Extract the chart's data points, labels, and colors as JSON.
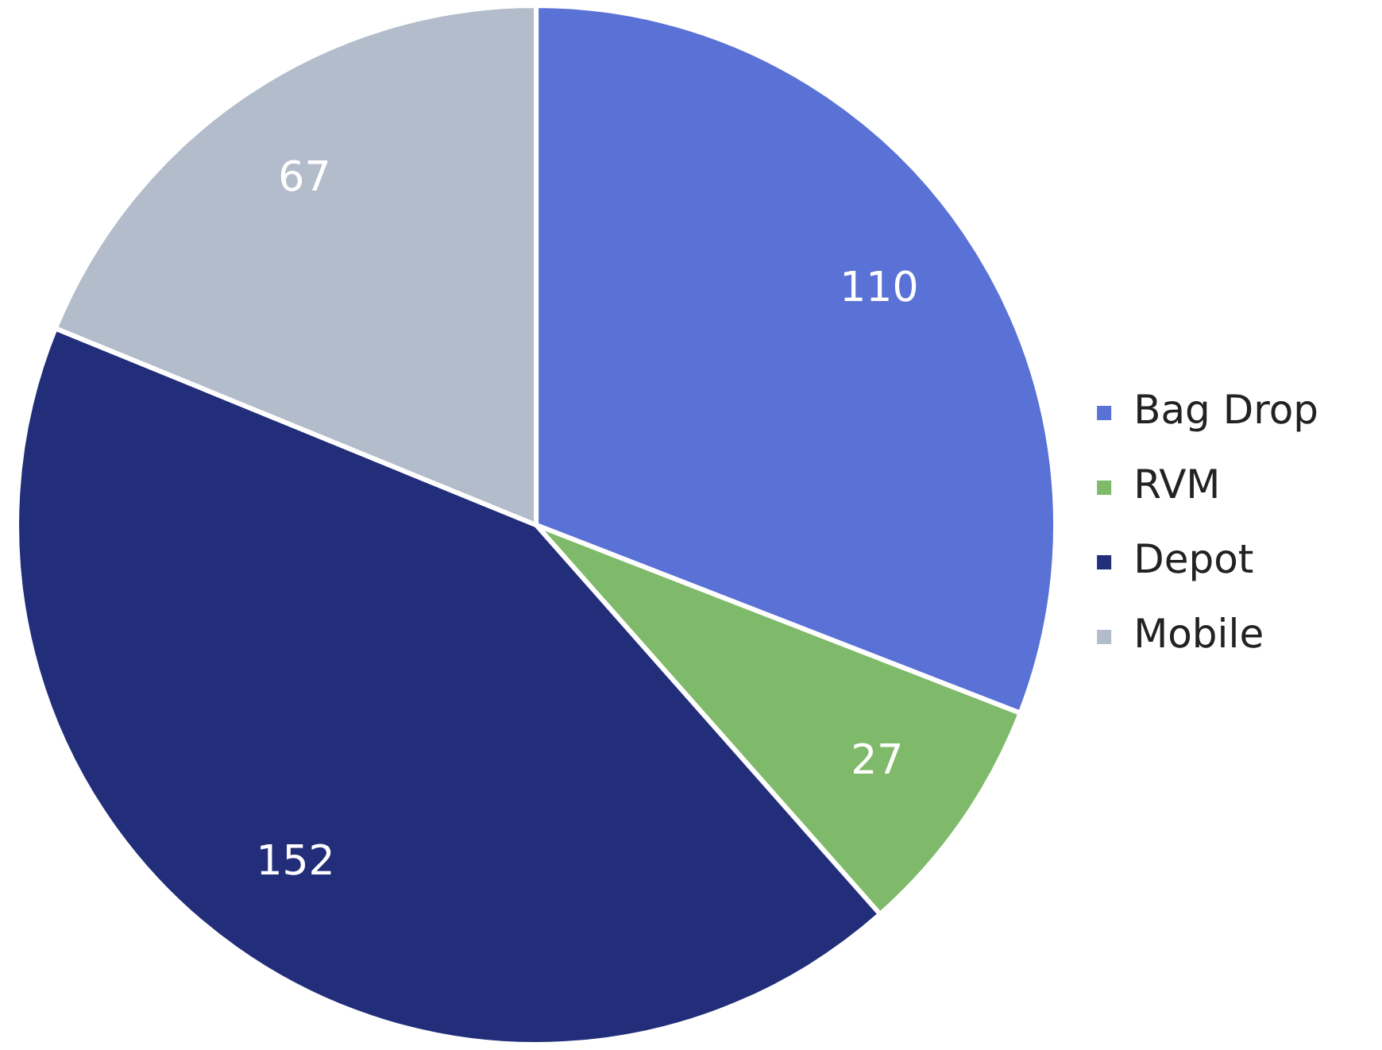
{
  "chart_data": {
    "type": "pie",
    "categories": [
      "Bag Drop",
      "RVM",
      "Depot",
      "Mobile"
    ],
    "values": [
      110,
      27,
      152,
      67
    ],
    "colors": [
      "#5a72d6",
      "#7fba6a",
      "#222e7a",
      "#b3bccb"
    ],
    "data_labels": true,
    "legend": "right"
  }
}
